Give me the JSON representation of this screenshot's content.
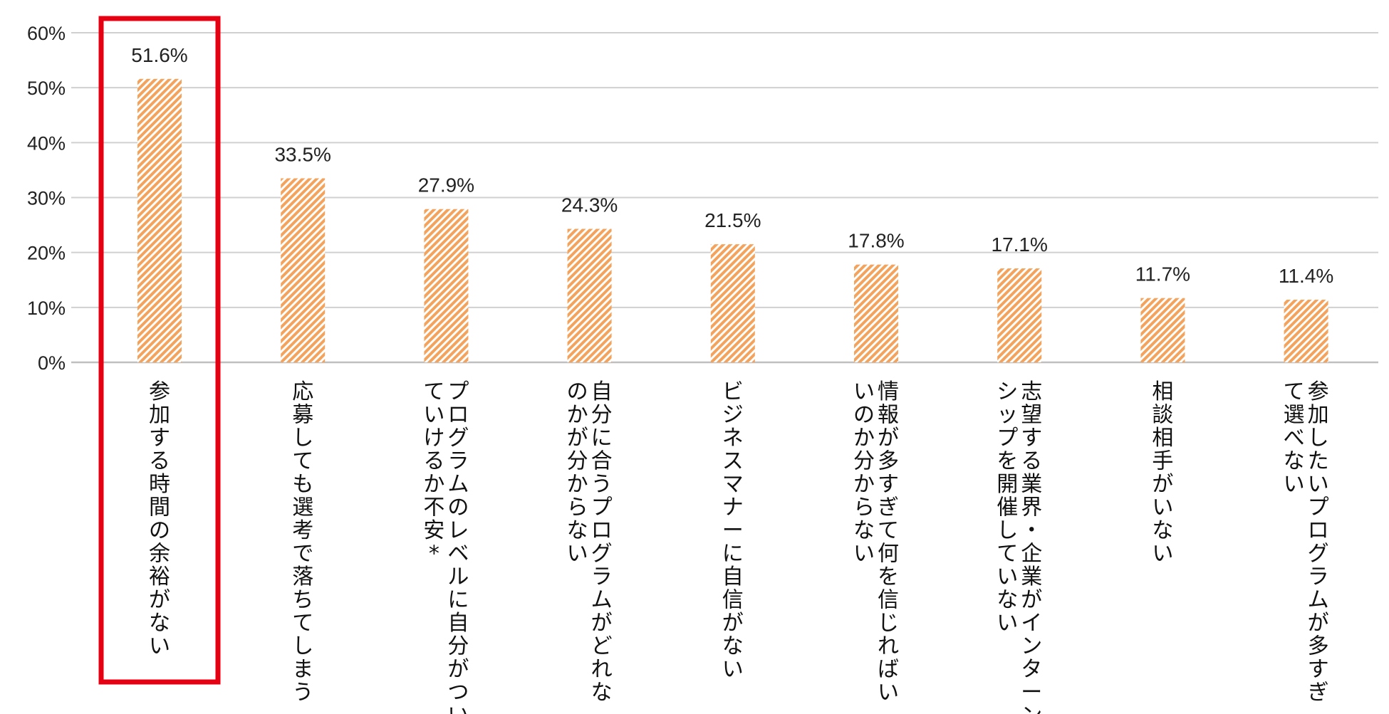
{
  "chart_data": {
    "type": "bar",
    "categories": [
      [
        "参加する時間の余裕がない"
      ],
      [
        "応募しても選考で落ちてしまう"
      ],
      [
        "プログラムのレベルに自分がつい",
        "ていけるか不安*"
      ],
      [
        "自分に合うプログラムがどれな",
        "のかが分からない"
      ],
      [
        "ビジネスマナーに自信がない"
      ],
      [
        "情報が多すぎて何を信じればい",
        "いのか分からない"
      ],
      [
        "志望する業界・企業がインターン",
        "シップを開催していない"
      ],
      [
        "相談相手がいない"
      ],
      [
        "参加したいプログラムが多すぎ",
        "て選べない"
      ]
    ],
    "values": [
      51.6,
      33.5,
      27.9,
      24.3,
      21.5,
      17.8,
      17.1,
      11.7,
      11.4
    ],
    "data_labels": [
      "51.6%",
      "33.5%",
      "27.9%",
      "24.3%",
      "21.5%",
      "17.8%",
      "17.1%",
      "11.7%",
      "11.4%"
    ],
    "y_ticks": [
      "0%",
      "10%",
      "20%",
      "30%",
      "40%",
      "50%",
      "60%"
    ],
    "ylim": [
      0,
      60
    ],
    "grid": true,
    "highlighted_index": 0,
    "colors": {
      "bar_stripe": "#f4a35c",
      "bar_background": "#ffffff",
      "highlight_box": "#e60012",
      "grid": "#d0d0d0",
      "axis": "#bfbfbf"
    }
  }
}
